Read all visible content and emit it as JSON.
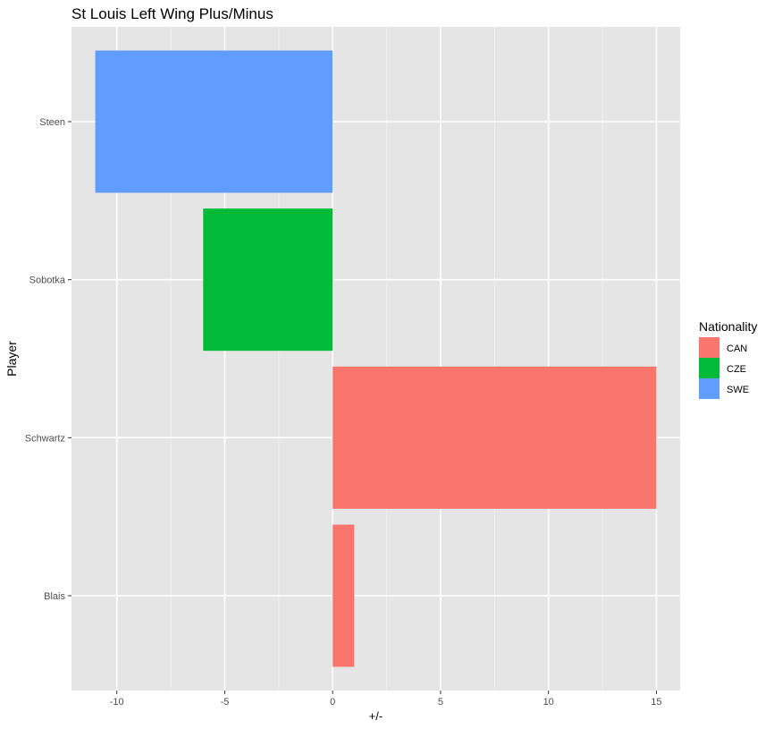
{
  "chart_data": {
    "type": "bar",
    "orientation": "horizontal",
    "title": "St Louis Left Wing Plus/Minus",
    "xlabel": "+/-",
    "ylabel": "Player",
    "xlim": [
      -12.1,
      16.1
    ],
    "x_ticks": [
      -10,
      -5,
      0,
      5,
      10,
      15
    ],
    "x_tick_labels": [
      "-10",
      "-5",
      "0",
      "5",
      "10",
      "15"
    ],
    "grid": true,
    "categories": [
      "Blais",
      "Schwartz",
      "Sobotka",
      "Steen"
    ],
    "bars": [
      {
        "player": "Steen",
        "value": -11,
        "nationality": "SWE"
      },
      {
        "player": "Sobotka",
        "value": -6,
        "nationality": "CZE"
      },
      {
        "player": "Schwartz",
        "value": 15,
        "nationality": "CAN"
      },
      {
        "player": "Blais",
        "value": 1,
        "nationality": "CAN"
      }
    ],
    "legend": {
      "title": "Nationality",
      "position": "right",
      "items": [
        {
          "label": "CAN",
          "color": "#F8766D"
        },
        {
          "label": "CZE",
          "color": "#00BA38"
        },
        {
          "label": "SWE",
          "color": "#619CFF"
        }
      ]
    }
  }
}
